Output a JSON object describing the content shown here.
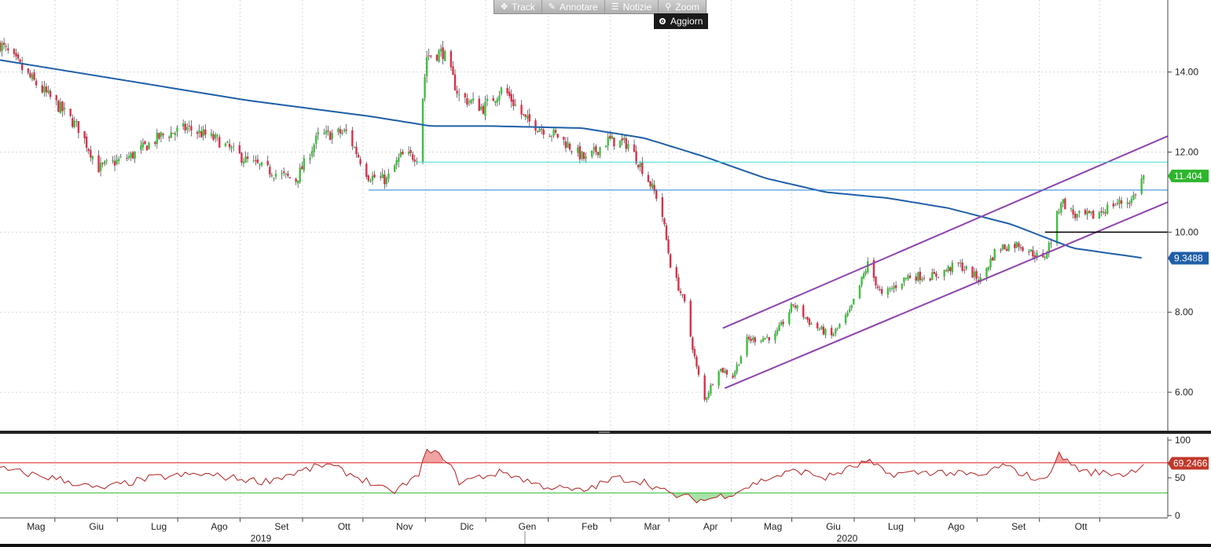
{
  "toolbar": {
    "track": {
      "label": "Track",
      "icon": "crosshair-icon"
    },
    "annotate": {
      "label": "Annotare",
      "icon": "pencil-icon"
    },
    "news": {
      "label": "Notizie",
      "icon": "news-icon"
    },
    "zoom": {
      "label": "Zoom",
      "icon": "magnifier-icon"
    }
  },
  "refresh_label": "Aggiorn",
  "colors": {
    "up": "#3fbf3f",
    "down": "#d9304a",
    "ma": "#1f5fa8",
    "channel": "#8e44ad",
    "level_cyan": "#3ddbd9",
    "level_blue": "#2a7fd4",
    "rsi_line": "#b22222",
    "rsi_upper": "#e03030",
    "rsi_lower": "#3fbf3f",
    "last_price_badge": "#2db52d",
    "ma_badge": "#1f5fa8",
    "rsi_badge": "#c0392b"
  },
  "chart_data": [
    {
      "type": "candlestick",
      "title": "",
      "ylim": [
        5.0,
        15.8
      ],
      "y_ticks": [
        "14.00",
        "12.00",
        "10.00",
        "8.00",
        "6.00"
      ],
      "x_months": [
        "Mag",
        "Giu",
        "Lug",
        "Ago",
        "Set",
        "Ott",
        "Nov",
        "Dic",
        "Gen",
        "Feb",
        "Mar",
        "Apr",
        "Mag",
        "Giu",
        "Lug",
        "Ago",
        "Set",
        "Ott"
      ],
      "x_years": [
        "2019",
        "2020"
      ],
      "price_anchors": [
        [
          "2019-04-01",
          14.7
        ],
        [
          "2019-04-15",
          13.9
        ],
        [
          "2019-04-29",
          13.2
        ],
        [
          "2019-05-10",
          12.6
        ],
        [
          "2019-05-20",
          11.6
        ],
        [
          "2019-06-05",
          11.9
        ],
        [
          "2019-06-20",
          12.4
        ],
        [
          "2019-07-03",
          12.6
        ],
        [
          "2019-07-18",
          12.3
        ],
        [
          "2019-08-01",
          11.8
        ],
        [
          "2019-08-14",
          11.5
        ],
        [
          "2019-08-26",
          11.3
        ],
        [
          "2019-09-06",
          12.4
        ],
        [
          "2019-09-20",
          12.5
        ],
        [
          "2019-10-01",
          11.4
        ],
        [
          "2019-10-10",
          11.3
        ],
        [
          "2019-10-17",
          11.9
        ],
        [
          "2019-10-25",
          11.9
        ],
        [
          "2019-10-30",
          14.4
        ],
        [
          "2019-11-07",
          14.5
        ],
        [
          "2019-11-15",
          13.4
        ],
        [
          "2019-11-27",
          13.1
        ],
        [
          "2019-12-07",
          13.6
        ],
        [
          "2019-12-18",
          12.8
        ],
        [
          "2020-01-03",
          12.4
        ],
        [
          "2020-01-17",
          11.8
        ],
        [
          "2020-01-28",
          12.3
        ],
        [
          "2020-02-07",
          12.2
        ],
        [
          "2020-02-15",
          11.5
        ],
        [
          "2020-02-21",
          10.9
        ],
        [
          "2020-02-24",
          10.4
        ],
        [
          "2020-02-28",
          9.2
        ],
        [
          "2020-03-06",
          8.2
        ],
        [
          "2020-03-12",
          6.6
        ],
        [
          "2020-03-16",
          5.8
        ],
        [
          "2020-03-23",
          6.6
        ],
        [
          "2020-03-30",
          6.4
        ],
        [
          "2020-04-06",
          7.3
        ],
        [
          "2020-04-20",
          7.4
        ],
        [
          "2020-04-29",
          8.2
        ],
        [
          "2020-05-08",
          7.7
        ],
        [
          "2020-05-18",
          7.4
        ],
        [
          "2020-05-27",
          8.0
        ],
        [
          "2020-06-05",
          9.2
        ],
        [
          "2020-06-12",
          8.4
        ],
        [
          "2020-06-25",
          8.9
        ],
        [
          "2020-07-08",
          8.9
        ],
        [
          "2020-07-20",
          9.2
        ],
        [
          "2020-07-31",
          8.8
        ],
        [
          "2020-08-08",
          9.6
        ],
        [
          "2020-08-19",
          9.7
        ],
        [
          "2020-08-31",
          9.3
        ],
        [
          "2020-09-04",
          9.8
        ],
        [
          "2020-09-09",
          10.8
        ],
        [
          "2020-09-16",
          10.4
        ],
        [
          "2020-09-25",
          10.4
        ],
        [
          "2020-10-05",
          10.7
        ],
        [
          "2020-10-14",
          10.8
        ],
        [
          "2020-10-20",
          11.4
        ]
      ],
      "moving_average": {
        "anchors": [
          [
            "2019-04-01",
            14.3
          ],
          [
            "2019-06-01",
            13.8
          ],
          [
            "2019-08-01",
            13.3
          ],
          [
            "2019-10-01",
            12.9
          ],
          [
            "2019-11-01",
            12.65
          ],
          [
            "2019-12-01",
            12.65
          ],
          [
            "2020-01-15",
            12.6
          ],
          [
            "2020-02-15",
            12.35
          ],
          [
            "2020-03-15",
            11.9
          ],
          [
            "2020-04-15",
            11.35
          ],
          [
            "2020-05-15",
            11.0
          ],
          [
            "2020-06-15",
            10.85
          ],
          [
            "2020-07-15",
            10.6
          ],
          [
            "2020-08-15",
            10.2
          ],
          [
            "2020-09-15",
            9.6
          ],
          [
            "2020-10-20",
            9.35
          ]
        ]
      },
      "channel": {
        "upper": [
          [
            "2020-03-25",
            7.6
          ],
          [
            "2020-11-01",
            12.4
          ]
        ],
        "lower": [
          [
            "2020-03-26",
            6.1
          ],
          [
            "2020-11-01",
            10.75
          ]
        ]
      },
      "levels": [
        {
          "value": 11.75,
          "from": "2019-10-25",
          "to": "2020-11-01",
          "color": "level_cyan"
        },
        {
          "value": 11.05,
          "from": "2019-10-01",
          "to": "2020-11-01",
          "color": "level_blue"
        },
        {
          "value": 10.0,
          "from": "2020-09-01",
          "to": "2020-11-01",
          "color": "black"
        }
      ],
      "badges": [
        {
          "label": "11.404",
          "value": 11.404,
          "color": "last_price_badge"
        },
        {
          "label": "9.3488",
          "value": 9.3488,
          "color": "ma_badge"
        }
      ]
    },
    {
      "type": "line",
      "title": "",
      "ylim": [
        0,
        100
      ],
      "y_ticks": [
        "100",
        "50",
        "0"
      ],
      "upper_level": 70,
      "lower_level": 30,
      "last_value_label": "69.2466",
      "last_value": 69.2466
    }
  ]
}
